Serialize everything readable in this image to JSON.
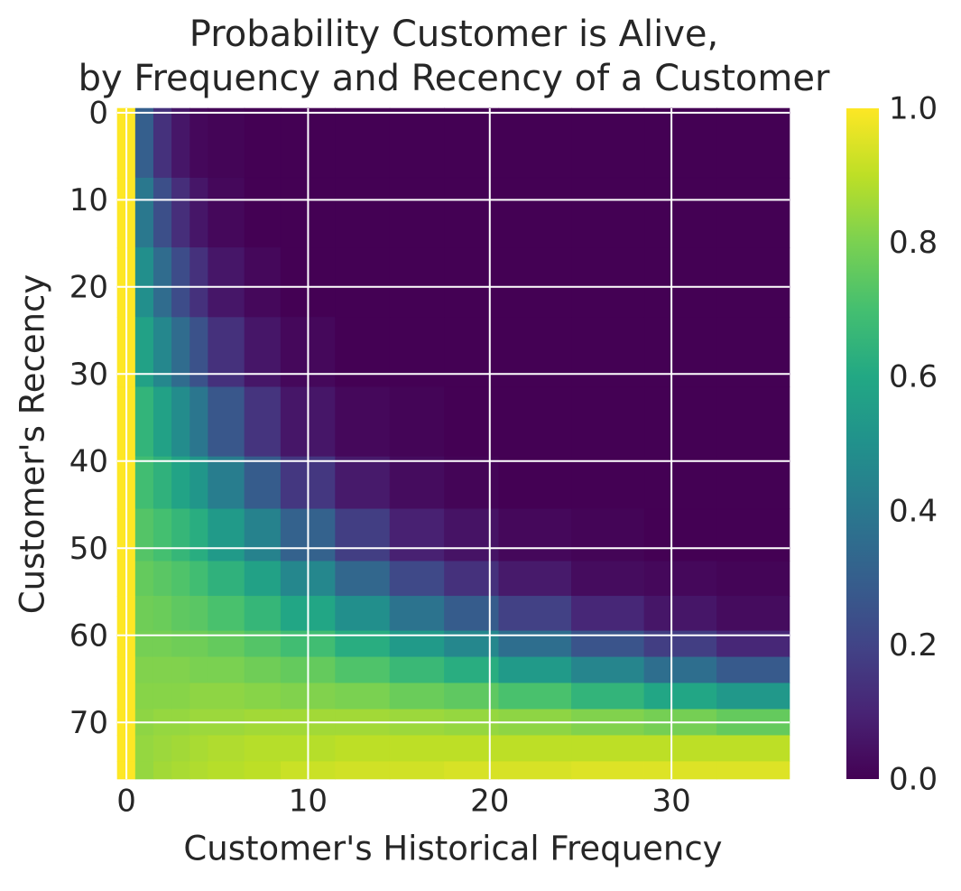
{
  "chart_data": {
    "type": "heatmap",
    "title": [
      "Probability Customer is Alive,",
      "by Frequency and Recency of a Customer"
    ],
    "xlabel": "Customer's Historical Frequency",
    "ylabel": "Customer's Recency",
    "x_edges": [
      -0.5,
      0.5,
      1.5,
      2.5,
      3.5,
      4.5,
      6.5,
      8.5,
      11.5,
      14.5,
      17.5,
      20.5,
      24.5,
      28.5,
      32.5,
      36.5
    ],
    "y_edges": [
      -0.5,
      7.5,
      15.5,
      23.5,
      31.5,
      39.5,
      45.5,
      51.5,
      55.5,
      59.5,
      62.5,
      65.5,
      68.5,
      71.5,
      74.5,
      76.5
    ],
    "z": [
      [
        1,
        0.3,
        0.14,
        0.06,
        0.02,
        0.01,
        0,
        0,
        0,
        0,
        0,
        0,
        0,
        0,
        0
      ],
      [
        1,
        0.4,
        0.24,
        0.13,
        0.06,
        0.02,
        0,
        0,
        0,
        0,
        0,
        0,
        0,
        0,
        0
      ],
      [
        1,
        0.49,
        0.35,
        0.23,
        0.14,
        0.06,
        0.02,
        0,
        0,
        0,
        0,
        0,
        0,
        0,
        0
      ],
      [
        1,
        0.57,
        0.46,
        0.35,
        0.25,
        0.14,
        0.06,
        0.02,
        0,
        0,
        0,
        0,
        0,
        0,
        0
      ],
      [
        1,
        0.65,
        0.57,
        0.48,
        0.39,
        0.27,
        0.15,
        0.06,
        0.02,
        0.01,
        0,
        0,
        0,
        0,
        0
      ],
      [
        1,
        0.69,
        0.64,
        0.58,
        0.52,
        0.42,
        0.29,
        0.16,
        0.07,
        0.03,
        0.01,
        0,
        0,
        0,
        0
      ],
      [
        1,
        0.73,
        0.7,
        0.66,
        0.62,
        0.54,
        0.44,
        0.31,
        0.18,
        0.09,
        0.05,
        0.02,
        0.01,
        0,
        0
      ],
      [
        1,
        0.76,
        0.74,
        0.72,
        0.69,
        0.64,
        0.57,
        0.46,
        0.33,
        0.22,
        0.14,
        0.07,
        0.03,
        0.02,
        0.01
      ],
      [
        1,
        0.78,
        0.77,
        0.75,
        0.74,
        0.71,
        0.66,
        0.59,
        0.49,
        0.38,
        0.29,
        0.19,
        0.11,
        0.06,
        0.03
      ],
      [
        1,
        0.79,
        0.79,
        0.78,
        0.78,
        0.76,
        0.73,
        0.69,
        0.62,
        0.54,
        0.46,
        0.36,
        0.26,
        0.18,
        0.11
      ],
      [
        1,
        0.81,
        0.81,
        0.81,
        0.8,
        0.8,
        0.78,
        0.76,
        0.72,
        0.67,
        0.62,
        0.54,
        0.45,
        0.36,
        0.28
      ],
      [
        1,
        0.82,
        0.82,
        0.82,
        0.83,
        0.83,
        0.82,
        0.81,
        0.8,
        0.77,
        0.75,
        0.71,
        0.65,
        0.59,
        0.53
      ],
      [
        1,
        0.83,
        0.84,
        0.84,
        0.85,
        0.85,
        0.86,
        0.86,
        0.86,
        0.85,
        0.84,
        0.83,
        0.81,
        0.79,
        0.76
      ],
      [
        1,
        0.84,
        0.85,
        0.86,
        0.87,
        0.88,
        0.89,
        0.89,
        0.9,
        0.9,
        0.9,
        0.9,
        0.9,
        0.9,
        0.9
      ],
      [
        1,
        0.84,
        0.86,
        0.87,
        0.88,
        0.89,
        0.9,
        0.92,
        0.93,
        0.93,
        0.94,
        0.94,
        0.95,
        0.95,
        0.95
      ]
    ],
    "colormap": "viridis",
    "xlim": [
      -0.5,
      36.5
    ],
    "xticks": [
      0,
      10,
      20,
      30
    ],
    "ylim": [
      76.5,
      -0.5
    ],
    "yticks": [
      0,
      10,
      20,
      30,
      40,
      50,
      60,
      70
    ],
    "clim": [
      0,
      1
    ],
    "cticks": [
      {
        "value": 0,
        "label": "0.0"
      },
      0.2,
      0.4,
      0.6,
      0.8,
      {
        "value": 1,
        "label": "1.0"
      }
    ],
    "grid": true
  }
}
